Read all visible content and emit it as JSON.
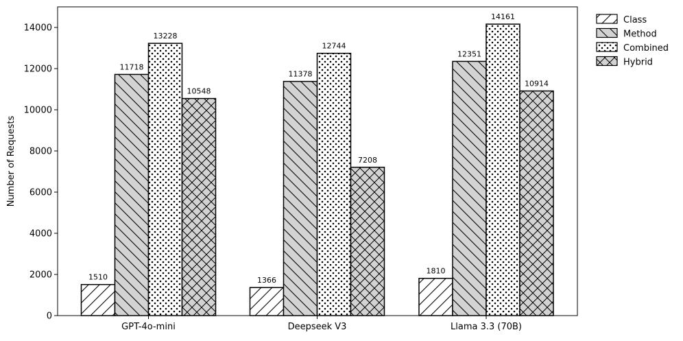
{
  "chart_data": {
    "type": "bar",
    "title": "",
    "xlabel": "",
    "ylabel": "Number of Requests",
    "categories": [
      "GPT-4o-mini",
      "Deepseek V3",
      "Llama 3.3 (70B)"
    ],
    "ylim": [
      0,
      15000
    ],
    "yticks": [
      0,
      2000,
      4000,
      6000,
      8000,
      10000,
      12000,
      14000
    ],
    "series": [
      {
        "name": "Class",
        "values": [
          1510,
          1366,
          1810
        ],
        "fill": "#ffffff",
        "pattern": "diagonal-forward"
      },
      {
        "name": "Method",
        "values": [
          11718,
          11378,
          12351
        ],
        "fill": "#d3d3d3",
        "pattern": "diagonal-backward"
      },
      {
        "name": "Combined",
        "values": [
          13228,
          12744,
          14161
        ],
        "fill": "#ffffff",
        "pattern": "dots"
      },
      {
        "name": "Hybrid",
        "values": [
          10548,
          7208,
          10914
        ],
        "fill": "#d3d3d3",
        "pattern": "crosshatch"
      }
    ],
    "legend_position": "outside-top-right",
    "grid": false
  }
}
